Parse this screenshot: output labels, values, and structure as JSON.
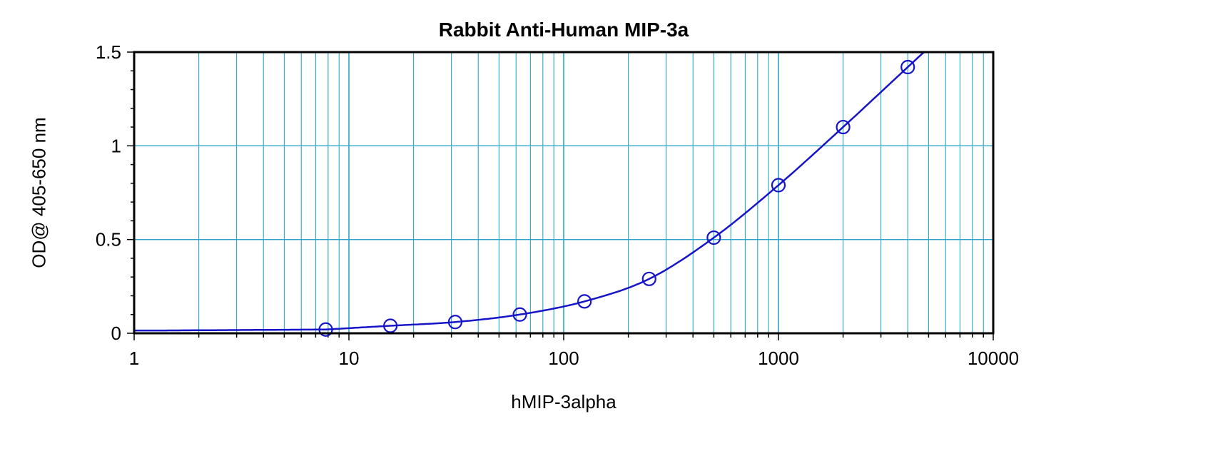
{
  "chart_data": {
    "type": "scatter",
    "title": "Rabbit Anti-Human MIP-3a",
    "xlabel": "hMIP-3alpha",
    "ylabel": "OD@ 405-650 nm",
    "x_scale": "log",
    "xlim": [
      1,
      10000
    ],
    "ylim": [
      0,
      1.5
    ],
    "x_ticks": [
      "1",
      "10",
      "100",
      "1000",
      "10000"
    ],
    "y_ticks": [
      "0",
      "0.5",
      "1",
      "1.5"
    ],
    "grid": true,
    "colors": {
      "grid": "#2aa5c8",
      "series": "#1616c8",
      "axis": "#000000"
    },
    "series": [
      {
        "x": [
          7.8,
          15.6,
          31.25,
          62.5,
          125,
          250,
          500,
          1000,
          2000,
          4000
        ],
        "y": [
          0.02,
          0.04,
          0.06,
          0.1,
          0.17,
          0.29,
          0.51,
          0.79,
          1.1,
          1.42
        ],
        "marker": "open-circle",
        "fit_line": true
      }
    ]
  }
}
